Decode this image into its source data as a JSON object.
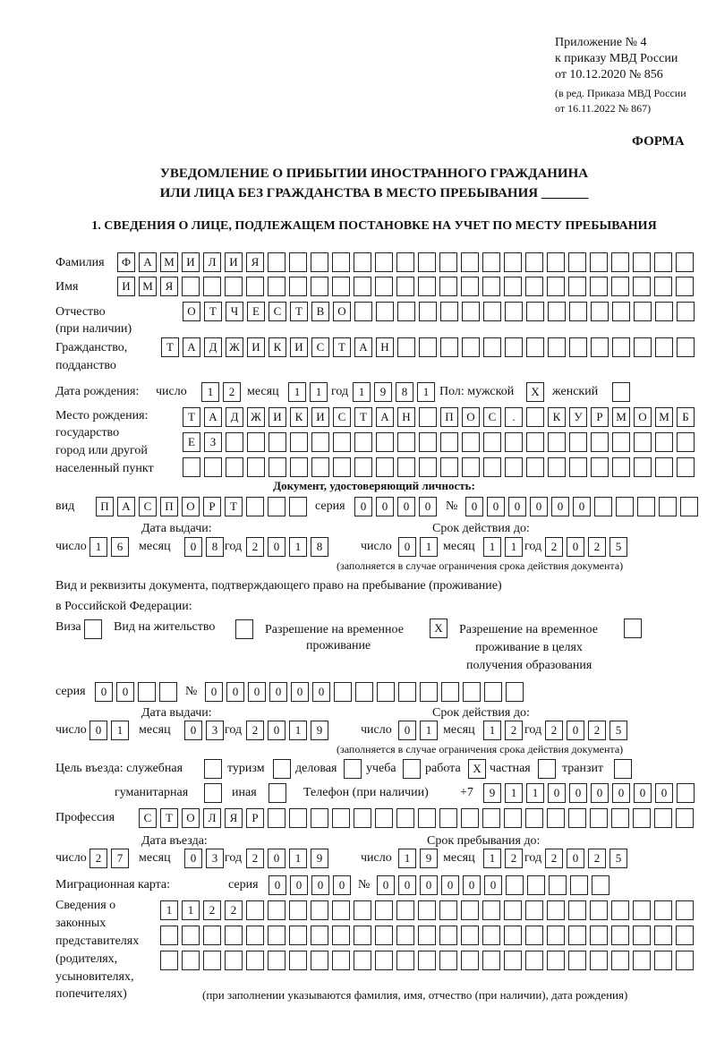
{
  "header": {
    "appendix": "Приложение № 4",
    "order": "к приказу МВД России",
    "order_date": "от 10.12.2020 № 856",
    "edition1": "(в ред. Приказа МВД России",
    "edition2": "от 16.11.2022 № 867)",
    "form_label": "ФОРМА",
    "title1": "УВЕДОМЛЕНИЕ О ПРИБЫТИИ ИНОСТРАННОГО ГРАЖДАНИНА",
    "title2": "ИЛИ ЛИЦА БЕЗ ГРАЖДАНСТВА В МЕСТО ПРЕБЫВАНИЯ _______",
    "section1": "1. СВЕДЕНИЯ О ЛИЦЕ, ПОДЛЕЖАЩЕМ ПОСТАНОВКЕ НА УЧЕТ ПО МЕСТУ ПРЕБЫВАНИЯ"
  },
  "labels": {
    "surname": "Фамилия",
    "name": "Имя",
    "patronymic": "Отчество",
    "patronymic_note": "(при наличии)",
    "citizenship": "Гражданство,",
    "citizenship2": "подданство",
    "birth_date": "Дата рождения:",
    "day": "число",
    "month": "месяц",
    "year": "год",
    "sex": "Пол: мужской",
    "female": "женский",
    "birth_place": "Место рождения:",
    "state": "государство",
    "city": "город или другой",
    "settlement": "населенный пункт",
    "id_doc": "Документ, удостоверяющий личность:",
    "kind": "вид",
    "series": "серия",
    "number": "№",
    "issue_date": "Дата выдачи:",
    "valid_until": "Срок действия до:",
    "validity_note": "(заполняется в случае ограничения срока действия документа)",
    "right_doc1": "Вид и реквизиты документа, подтверждающего право на пребывание (проживание)",
    "right_doc2": "в Российской Федерации:",
    "visa": "Виза",
    "residence": "Вид на жительство",
    "temp1": "Разрешение на временное",
    "temp2": "проживание",
    "edu1": "Разрешение на временное",
    "edu2": "проживание в целях",
    "edu3": "получения образования",
    "purpose": "Цель въезда: служебная",
    "tourism": "туризм",
    "business": "деловая",
    "study": "учеба",
    "work": "работа",
    "private": "частная",
    "transit": "транзит",
    "humanitarian": "гуманитарная",
    "other": "иная",
    "phone": "Телефон (при наличии)",
    "phone_prefix": "+7",
    "profession": "Профессия",
    "entry_date": "Дата въезда:",
    "stay_until": "Срок пребывания до:",
    "migration_card": "Миграционная карта:",
    "reps1": "Сведения о",
    "reps2": "законных",
    "reps3": "представителях",
    "reps4": "(родителях,",
    "reps5": "усыновителях,",
    "reps6": "попечителях)",
    "reps_note": "(при заполнении указываются фамилия, имя, отчество (при наличии), дата рождения)"
  },
  "values": {
    "surname": "ФАМИЛИЯ",
    "name": "ИМЯ",
    "patronymic": "ОТЧЕСТВО",
    "citizenship": "ТАДЖИКИСТАН",
    "birth_day": "12",
    "birth_month": "11",
    "birth_year": "1981",
    "male": "X",
    "female": "",
    "birth_place1": "ТАДЖИКИСТАН ПОС. КУРМОМБ",
    "birth_place2": "ЕЗ",
    "birth_place3": "",
    "id_kind": "ПАСПОРТ",
    "id_series": "0000",
    "id_number": "000000",
    "id_issue_day": "16",
    "id_issue_month": "08",
    "id_issue_year": "2018",
    "id_valid_day": "01",
    "id_valid_month": "11",
    "id_valid_year": "2025",
    "visa": "",
    "residence": "",
    "temp_residence": "X",
    "temp_edu": "",
    "rd_series": "00",
    "rd_number": "000000",
    "rd_issue_day": "01",
    "rd_issue_month": "03",
    "rd_issue_year": "2019",
    "rd_valid_day": "01",
    "rd_valid_month": "12",
    "rd_valid_year": "2025",
    "p_service": "",
    "p_tourism": "",
    "p_business": "",
    "p_study": "",
    "p_work": "X",
    "p_private": "",
    "p_transit": "",
    "p_humanitarian": "",
    "p_other": "",
    "phone": "911000000",
    "profession": "СТОЛЯР",
    "entry_day": "27",
    "entry_month": "03",
    "entry_year": "2019",
    "stay_day": "19",
    "stay_month": "12",
    "stay_year": "2025",
    "mc_series": "0000",
    "mc_number": "000000",
    "reps1": "1122",
    "reps2": "",
    "reps3": ""
  }
}
